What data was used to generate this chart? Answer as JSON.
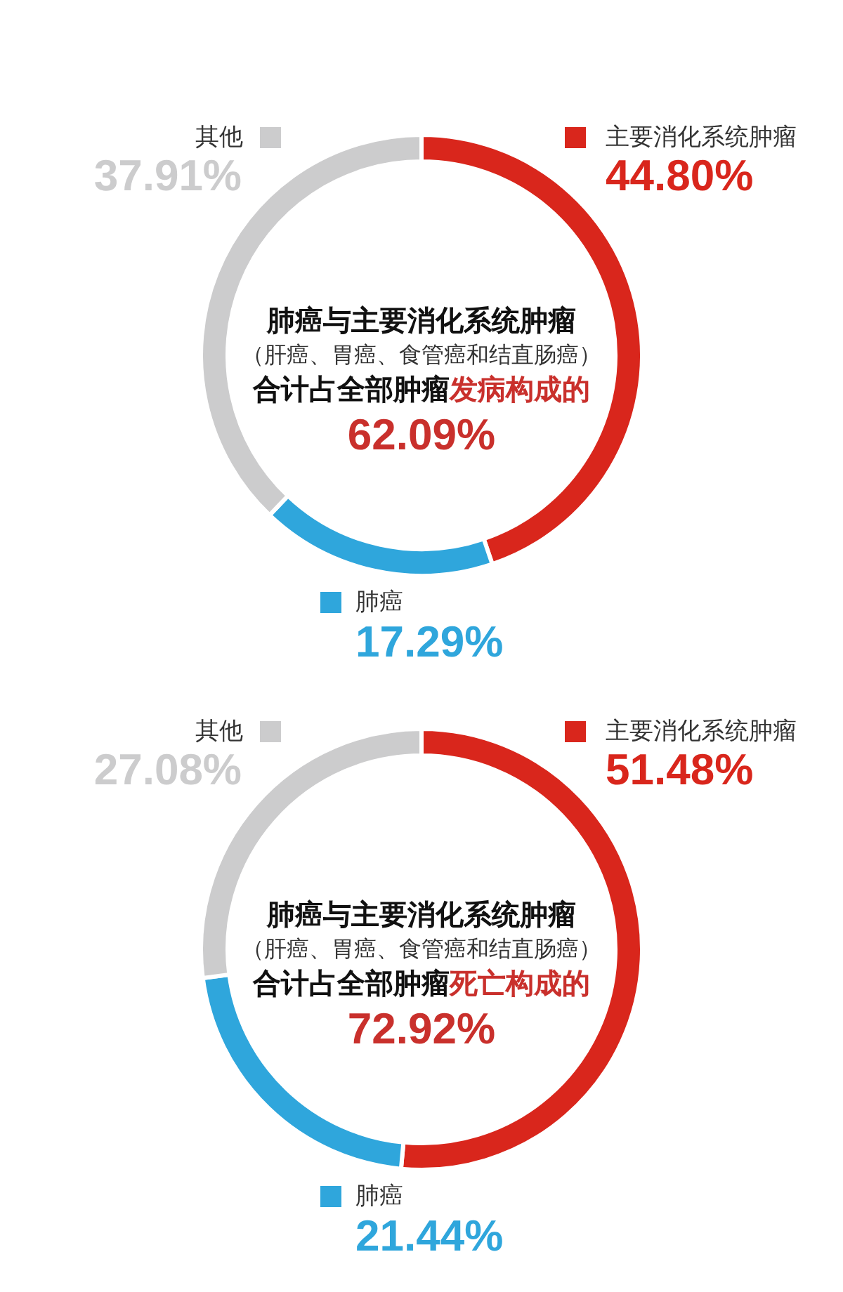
{
  "chart_data": [
    {
      "type": "donut",
      "categories": [
        "主要消化系统肿瘤",
        "肺癌",
        "其他"
      ],
      "values": [
        44.8,
        17.29,
        37.91
      ],
      "colors": [
        "#d9261c",
        "#2fa6dc",
        "#cccccd"
      ],
      "value_labels": [
        "44.80%",
        "17.29%",
        "37.91%"
      ],
      "legend": "bottom right",
      "annotations": [
        "肺癌与主要消化系统肿瘤",
        "（肝癌、胃癌、食管癌和结直肠癌）",
        "合计占全部肿瘤",
        "发病构成的",
        "62.09%"
      ]
    },
    {
      "type": "donut",
      "categories": [
        "主要消化系统肿瘤",
        "肺癌",
        "其他"
      ],
      "values": [
        51.48,
        21.44,
        27.08
      ],
      "colors": [
        "#d9261c",
        "#2fa6dc",
        "#cccccd"
      ],
      "value_labels": [
        "51.48%",
        "21.44%",
        "27.08%"
      ],
      "legend": "bottom right",
      "annotations": [
        "肺癌与主要消化系统肿瘤",
        "（肝癌、胃癌、食管癌和结直肠癌）",
        "合计占全部肿瘤",
        "死亡构成的",
        "72.92%"
      ]
    }
  ]
}
